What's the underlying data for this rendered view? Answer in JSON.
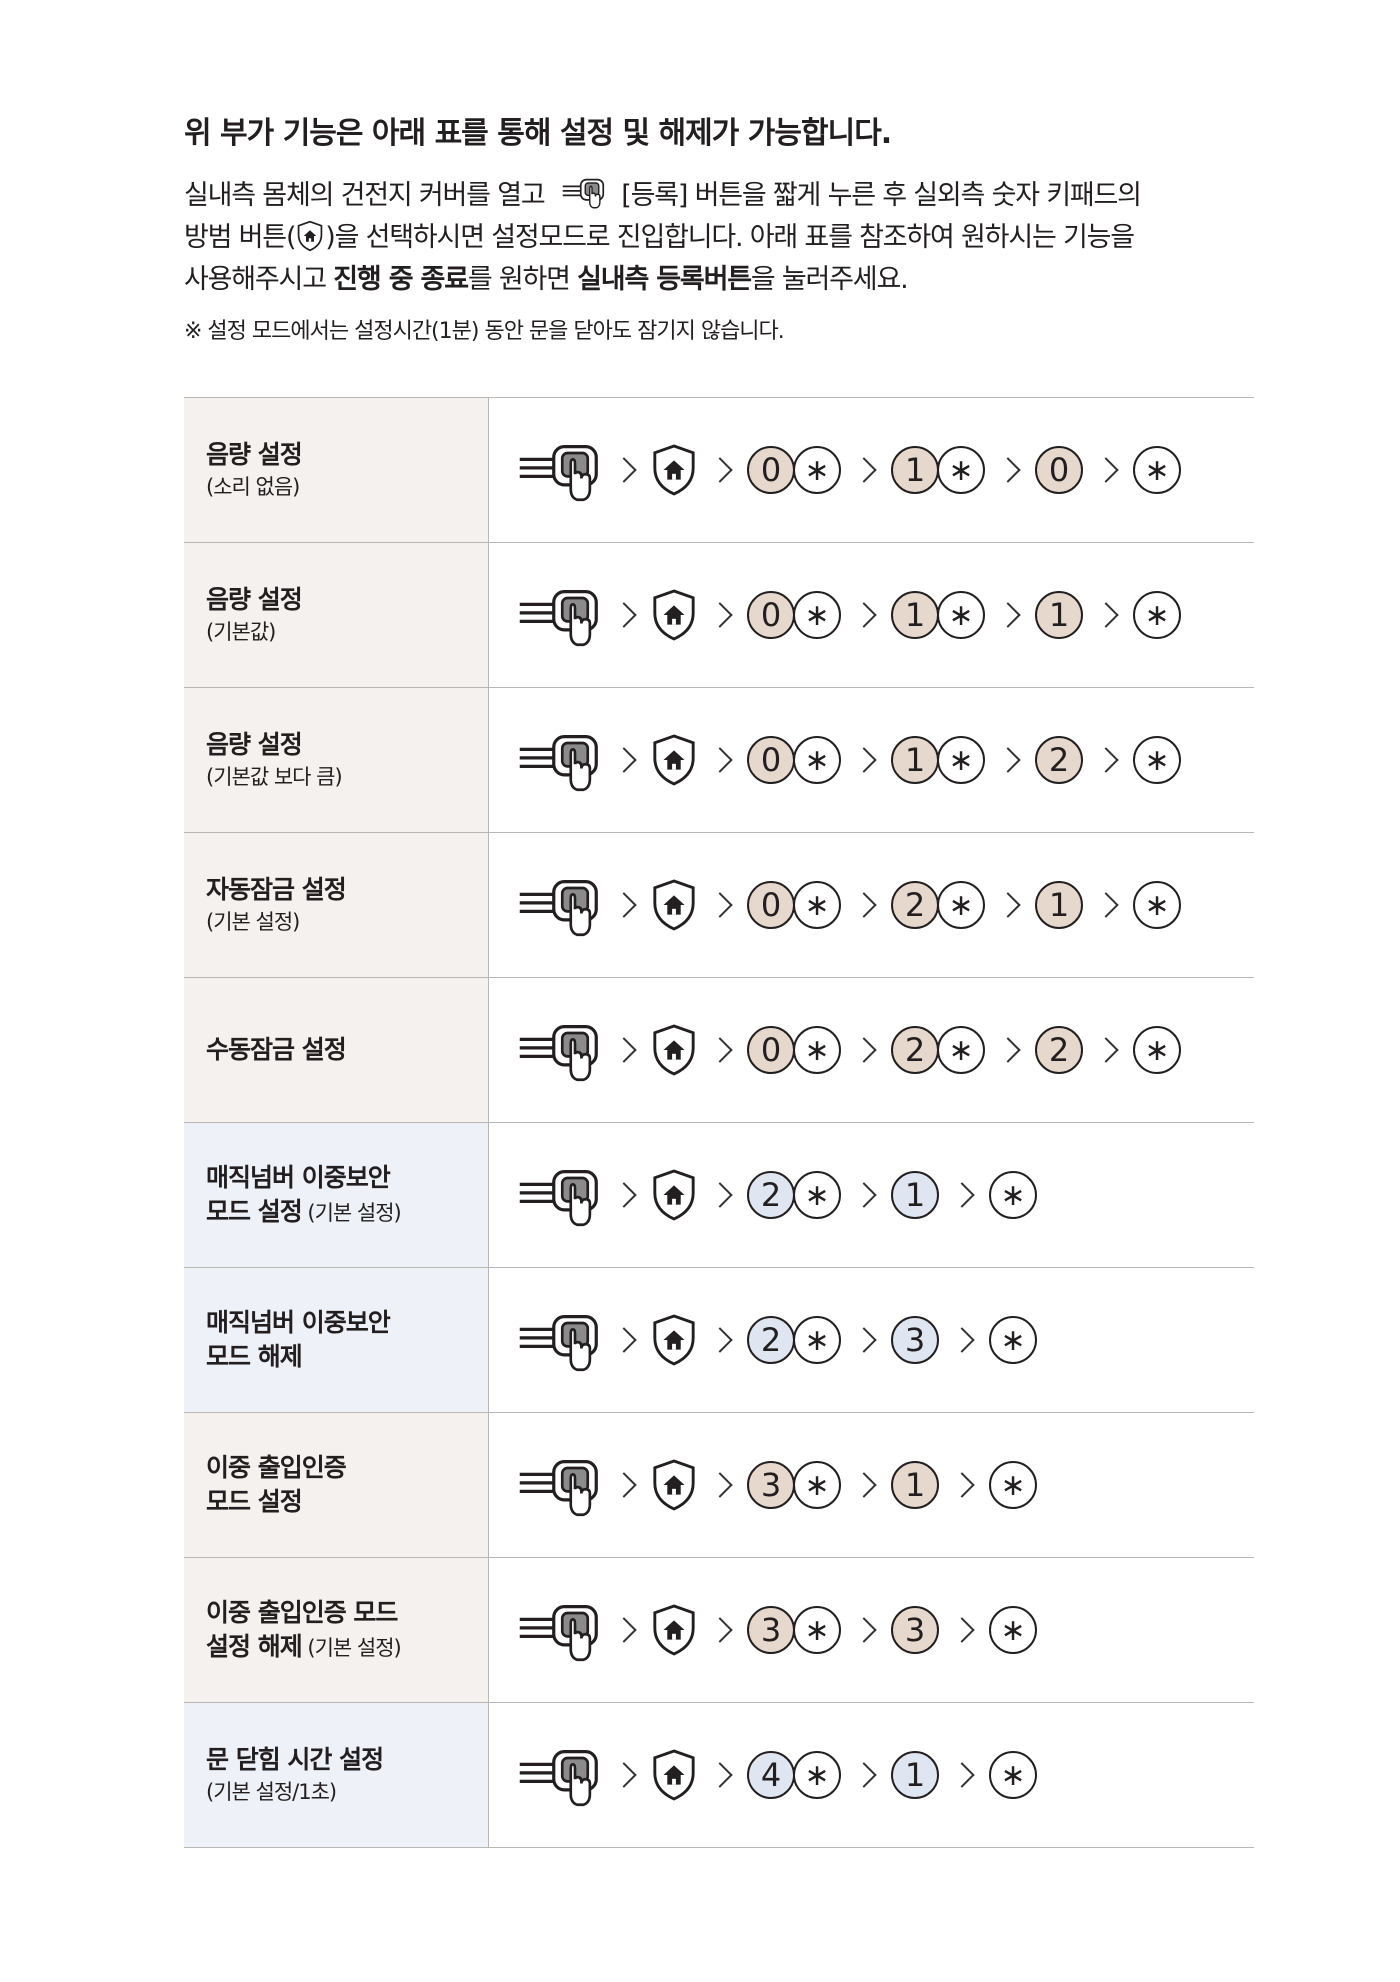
{
  "header": {
    "title": "위 부가 기능은 아래 표를 통해 설정 및 해제가 가능합니다.",
    "line1_a": "실내측 몸체의 건전지 커버를 열고",
    "line1_b": "[등록] 버튼을 짧게 누른 후 실외측 숫자 키패드의",
    "line2_a": "방범 버튼(",
    "line2_b": ")을 선택하시면 설정모드로 진입합니다. 아래 표를 참조하여 원하시는 기능을",
    "line3_a": "사용해주시고 ",
    "line3_b": "진행 중 종료",
    "line3_c": "를 원하면 ",
    "line3_d": "실내측 등록버튼",
    "line3_e": "을 눌러주세요.",
    "note": "※ 설정 모드에서는 설정시간(1분) 동안 문을 닫아도 잠기지 않습니다."
  },
  "colors": {
    "warm_bg": "#f5f1ee",
    "cool_bg": "#eef1f7",
    "beige_key": "#e6d8cc",
    "blue_key": "#dfe6f1"
  },
  "icons": {
    "register": "register-button-icon",
    "security": "security-shield-icon"
  },
  "rows": [
    {
      "main": "음량 설정",
      "sub": "(소리 없음)",
      "tone": "warm",
      "pairs": [
        [
          "0",
          "*"
        ],
        [
          "1",
          "*"
        ]
      ],
      "last": "0"
    },
    {
      "main": "음량 설정",
      "sub": "(기본값)",
      "tone": "warm",
      "pairs": [
        [
          "0",
          "*"
        ],
        [
          "1",
          "*"
        ]
      ],
      "last": "1"
    },
    {
      "main": "음량 설정",
      "sub": "(기본값 보다 큼)",
      "tone": "warm",
      "pairs": [
        [
          "0",
          "*"
        ],
        [
          "1",
          "*"
        ]
      ],
      "last": "2"
    },
    {
      "main": "자동잠금 설정",
      "sub": "(기본 설정)",
      "tone": "warm",
      "pairs": [
        [
          "0",
          "*"
        ],
        [
          "2",
          "*"
        ]
      ],
      "last": "1"
    },
    {
      "main": "수동잠금 설정",
      "sub": "",
      "tone": "warm",
      "pairs": [
        [
          "0",
          "*"
        ],
        [
          "2",
          "*"
        ]
      ],
      "last": "2"
    },
    {
      "main": "매직넘버 이중보안",
      "main2": "모드 설정",
      "sub2": "(기본 설정)",
      "tone": "cool",
      "pairs": [
        [
          "2",
          "*"
        ]
      ],
      "last": "1"
    },
    {
      "main": "매직넘버 이중보안",
      "main2": "모드 해제",
      "tone": "cool",
      "pairs": [
        [
          "2",
          "*"
        ]
      ],
      "last": "3"
    },
    {
      "main": "이중 출입인증",
      "main2": "모드 설정",
      "tone": "warm",
      "pairs": [
        [
          "3",
          "*"
        ]
      ],
      "last": "1"
    },
    {
      "main": "이중 출입인증 모드",
      "main2": "설정 해제",
      "sub2": "(기본 설정)",
      "tone": "warm",
      "pairs": [
        [
          "3",
          "*"
        ]
      ],
      "last": "3"
    },
    {
      "main": "문 닫힘 시간 설정",
      "sub": "(기본 설정/1초)",
      "tone": "cool",
      "pairs": [
        [
          "4",
          "*"
        ]
      ],
      "last": "1"
    }
  ]
}
